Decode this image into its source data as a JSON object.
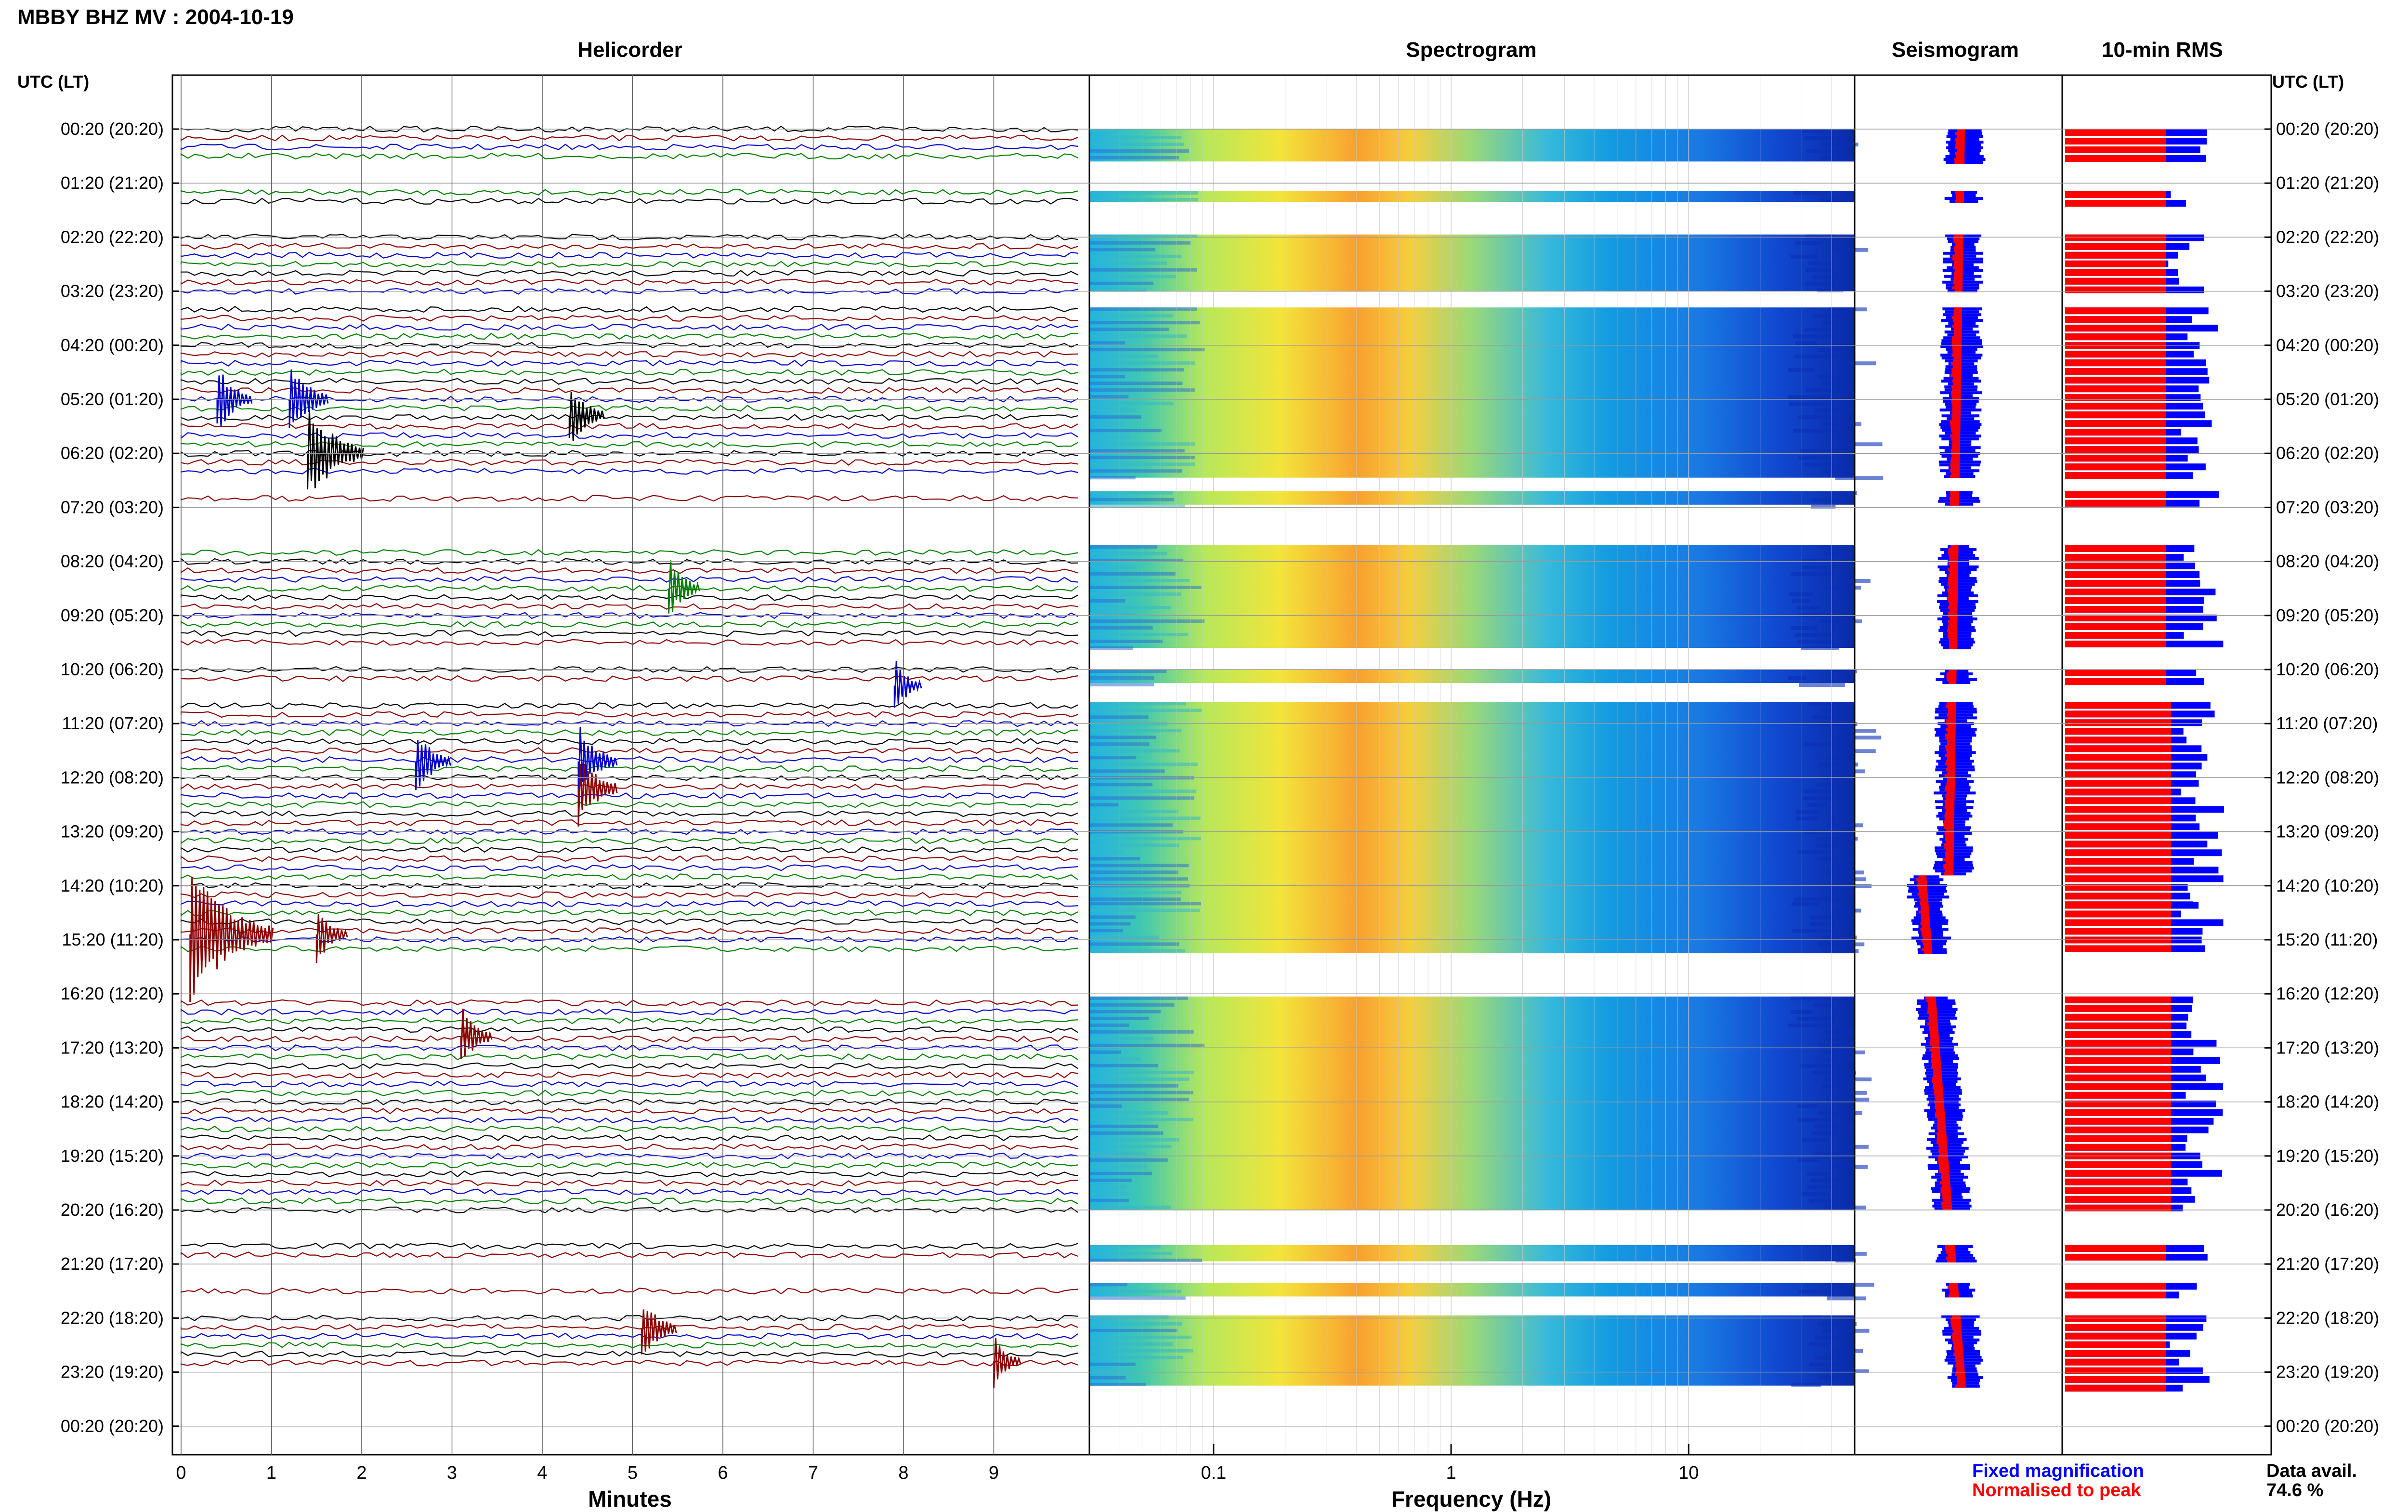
{
  "header": {
    "title": "MBBY BHZ MV : 2004-10-19"
  },
  "panels": {
    "helicorder": "Helicorder",
    "spectrogram": "Spectrogram",
    "seismogram": "Seismogram",
    "rms": "10-min RMS"
  },
  "axis": {
    "left_label": "UTC (LT)",
    "right_label": "UTC (LT)",
    "helicorder_xlabel": "Minutes",
    "spectrogram_xlabel": "Frequency (Hz)",
    "minute_ticks": [
      "0",
      "1",
      "2",
      "3",
      "4",
      "5",
      "6",
      "7",
      "8",
      "9"
    ],
    "frequency_ticks": [
      "0.1",
      "1",
      "10"
    ]
  },
  "legend": {
    "fixed": "Fixed magnification",
    "normalised": "Normalised to peak",
    "fixed_color": "#0000ff",
    "normalised_color": "#ff0000"
  },
  "availability": {
    "label": "Data avail.",
    "value": "74.6 %"
  },
  "colors": {
    "trace_black": "#000000",
    "trace_red": "#8b0000",
    "trace_blue": "#0000cc",
    "trace_green": "#008000",
    "rms_fixed": "#0000ff",
    "rms_normalised": "#ff0000"
  },
  "chart_data": {
    "type": "heatmap",
    "time_labels": [
      "00:20 (20:20)",
      "01:20 (21:20)",
      "02:20 (22:20)",
      "03:20 (23:20)",
      "04:20 (00:20)",
      "05:20 (01:20)",
      "06:20 (02:20)",
      "07:20 (03:20)",
      "08:20 (04:20)",
      "09:20 (05:20)",
      "10:20 (06:20)",
      "11:20 (07:20)",
      "12:20 (08:20)",
      "13:20 (09:20)",
      "14:20 (10:20)",
      "15:20 (11:20)",
      "16:20 (12:20)",
      "17:20 (13:20)",
      "18:20 (14:20)",
      "19:20 (15:20)",
      "20:20 (16:20)",
      "21:20 (17:20)",
      "22:20 (18:20)",
      "23:20 (19:20)",
      "00:20 (20:20)"
    ],
    "minutes_range": [
      0,
      10
    ],
    "frequency_range_hz": [
      0.03,
      50
    ],
    "frequency_scale": "log",
    "data_availability_percent": 74.6,
    "data_segments_utc_hours": [
      [
        0.0,
        0.6
      ],
      [
        1.15,
        1.35
      ],
      [
        1.95,
        3.0
      ],
      [
        3.3,
        6.45
      ],
      [
        6.7,
        6.95
      ],
      [
        7.7,
        9.6
      ],
      [
        10.0,
        10.25
      ],
      [
        10.6,
        14.3
      ],
      [
        14.3,
        15.25
      ],
      [
        16.05,
        20.0
      ],
      [
        20.65,
        20.95
      ],
      [
        21.35,
        21.6
      ],
      [
        21.95,
        23.25
      ]
    ],
    "seismic_events": [
      {
        "utc_hour": 5.0,
        "minute": 0.4,
        "amplitude": 0.5
      },
      {
        "utc_hour": 5.0,
        "minute": 1.2,
        "amplitude": 0.6
      },
      {
        "utc_hour": 5.3,
        "minute": 4.3,
        "amplitude": 0.5
      },
      {
        "utc_hour": 6.0,
        "minute": 1.4,
        "amplitude": 1.0
      },
      {
        "utc_hour": 8.5,
        "minute": 5.4,
        "amplitude": 0.4
      },
      {
        "utc_hour": 10.3,
        "minute": 7.9,
        "amplitude": 0.3
      },
      {
        "utc_hour": 11.7,
        "minute": 2.6,
        "amplitude": 0.5
      },
      {
        "utc_hour": 11.7,
        "minute": 4.4,
        "amplitude": 0.6
      },
      {
        "utc_hour": 12.2,
        "minute": 4.4,
        "amplitude": 0.6
      },
      {
        "utc_hour": 14.9,
        "minute": 0.1,
        "amplitude": 1.6
      },
      {
        "utc_hour": 14.9,
        "minute": 1.5,
        "amplitude": 0.4
      },
      {
        "utc_hour": 16.8,
        "minute": 3.1,
        "amplitude": 0.4
      },
      {
        "utc_hour": 22.2,
        "minute": 5.1,
        "amplitude": 0.5
      },
      {
        "utc_hour": 22.8,
        "minute": 9.0,
        "amplitude": 0.3
      }
    ]
  }
}
